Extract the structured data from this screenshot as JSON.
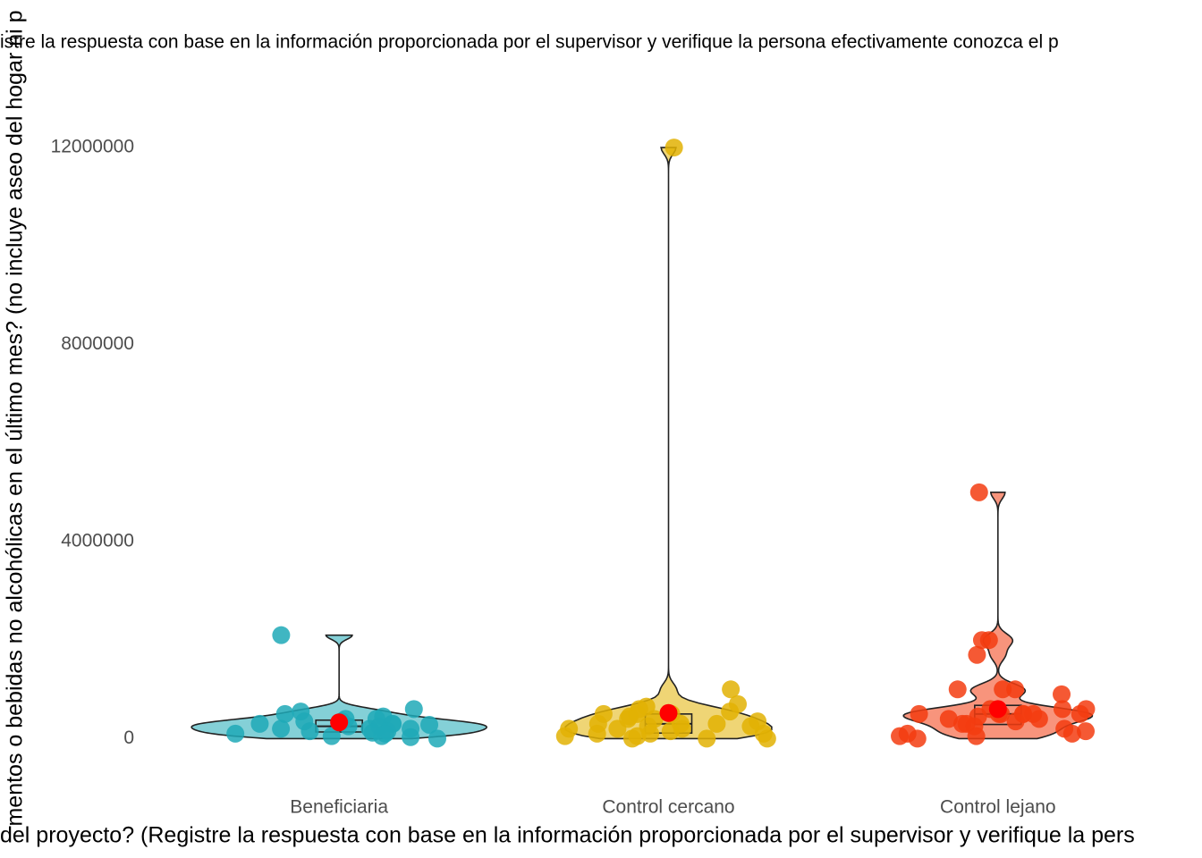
{
  "chart_data": {
    "type": "violin",
    "title": "istre la respuesta con base en la información proporcionada por el supervisor y verifique la persona efectivamente conozca el p",
    "x_label": "del proyecto? (Registre la respuesta con base en la información proporcionada por el supervisor y verifique la pers",
    "y_label": "mentos o bebidas no alcohólicas en el último mes? (no incluye aseo del hogar ni p",
    "ylim": [
      -700000,
      12600000
    ],
    "yticks": [
      0,
      4000000,
      8000000,
      12000000
    ],
    "mean_color": "#ff0000",
    "series": [
      {
        "name": "Beneficiaria",
        "color": "#1fa9b7",
        "mean": 330000,
        "values": [
          2100000,
          600000,
          550000,
          500000,
          450000,
          400000,
          350000,
          300000,
          300000,
          250000,
          250000,
          200000,
          200000,
          200000,
          150000,
          150000,
          100000,
          100000,
          50000,
          50000,
          0,
          30000,
          300000,
          350000,
          280000,
          400000,
          120000
        ]
      },
      {
        "name": "Control cercano",
        "color": "#e2b203",
        "mean": 520000,
        "values": [
          12000000,
          1000000,
          700000,
          650000,
          600000,
          550000,
          500000,
          500000,
          450000,
          400000,
          400000,
          350000,
          300000,
          300000,
          250000,
          200000,
          200000,
          200000,
          150000,
          100000,
          100000,
          100000,
          50000,
          50000,
          0,
          0,
          0,
          500000,
          300000,
          250000
        ]
      },
      {
        "name": "Control lejano",
        "color": "#f33c10",
        "mean": 600000,
        "values": [
          5000000,
          2000000,
          2000000,
          1700000,
          1000000,
          1000000,
          1000000,
          900000,
          600000,
          600000,
          500000,
          500000,
          500000,
          500000,
          500000,
          500000,
          450000,
          400000,
          400000,
          350000,
          300000,
          300000,
          250000,
          200000,
          150000,
          100000,
          100000,
          50000,
          50000,
          0,
          500000,
          600000
        ]
      }
    ]
  }
}
